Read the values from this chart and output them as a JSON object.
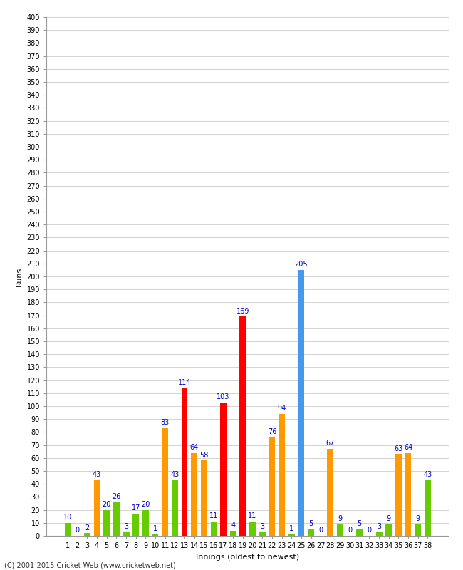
{
  "xlabel": "Innings (oldest to newest)",
  "ylabel": "Runs",
  "footer": "(C) 2001-2015 Cricket Web (www.cricketweb.net)",
  "ylim": [
    0,
    400
  ],
  "background_color": "#ffffff",
  "grid_color": "#cccccc",
  "innings": [
    1,
    2,
    3,
    4,
    5,
    6,
    7,
    8,
    9,
    10,
    11,
    12,
    13,
    14,
    15,
    16,
    17,
    18,
    19,
    20,
    21,
    22,
    23,
    24,
    25,
    26,
    27,
    28,
    29,
    30,
    31,
    32,
    33,
    34,
    35,
    36,
    37,
    38
  ],
  "scores": [
    10,
    0,
    2,
    43,
    20,
    26,
    3,
    17,
    20,
    1,
    83,
    43,
    114,
    64,
    58,
    11,
    103,
    4,
    169,
    11,
    3,
    76,
    94,
    1,
    205,
    5,
    0,
    67,
    9,
    0,
    5,
    0,
    3,
    9,
    63,
    64,
    9,
    43
  ],
  "colors": [
    "#66cc00",
    "#66cc00",
    "#66cc00",
    "#ff9900",
    "#66cc00",
    "#66cc00",
    "#66cc00",
    "#66cc00",
    "#66cc00",
    "#66cc00",
    "#ff9900",
    "#66cc00",
    "#ff0000",
    "#ff9900",
    "#ff9900",
    "#66cc00",
    "#ff0000",
    "#66cc00",
    "#ff0000",
    "#66cc00",
    "#66cc00",
    "#ff9900",
    "#ff9900",
    "#66cc00",
    "#4499ee",
    "#66cc00",
    "#66cc00",
    "#ff9900",
    "#66cc00",
    "#66cc00",
    "#66cc00",
    "#66cc00",
    "#66cc00",
    "#66cc00",
    "#ff9900",
    "#ff9900",
    "#66cc00",
    "#66cc00"
  ],
  "label_color": "#0000cc",
  "label_fontsize": 7,
  "tick_fontsize": 7,
  "axis_label_fontsize": 8,
  "footer_fontsize": 7
}
